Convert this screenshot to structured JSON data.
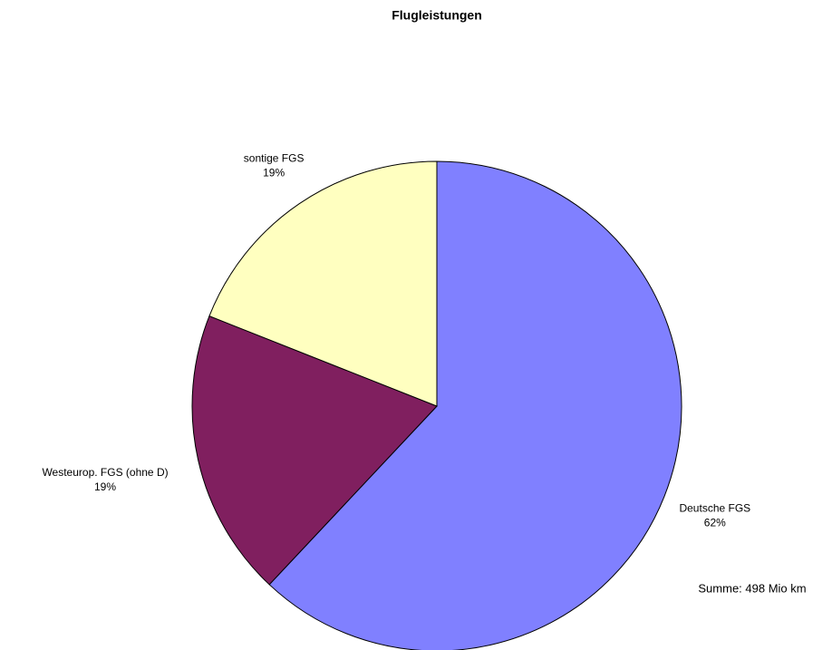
{
  "chart_data": {
    "type": "pie",
    "title": "Flugleistungen",
    "categories": [
      "Deutsche FGS",
      "Westeurop. FGS (ohne D)",
      "sontige FGS"
    ],
    "values": [
      62,
      19,
      19
    ],
    "value_labels": [
      "62%",
      "19%",
      "19%"
    ],
    "colors": [
      "#8080ff",
      "#801f5f",
      "#ffffc0"
    ],
    "annotation": "Summe: 498 Mio km"
  }
}
